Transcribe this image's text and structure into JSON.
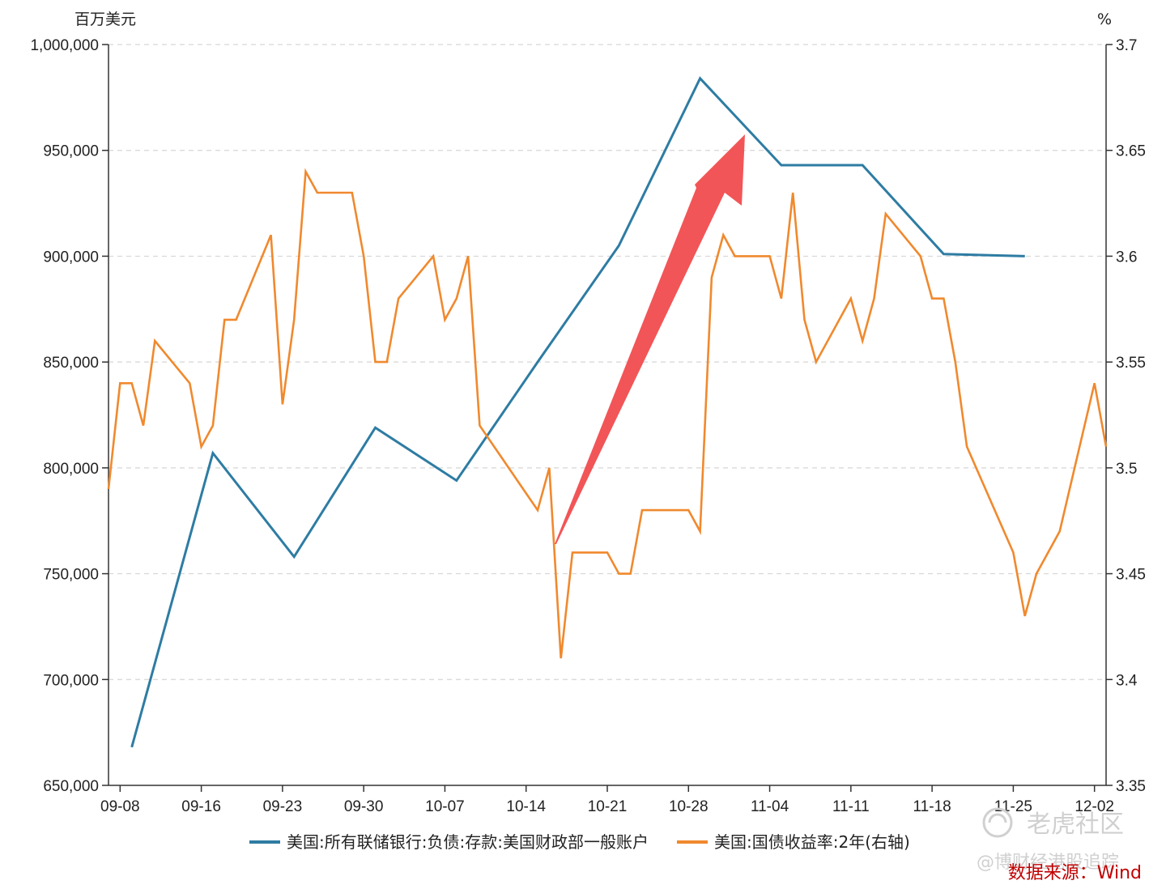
{
  "chart_data": {
    "type": "line",
    "title": "",
    "left_axis": {
      "unit": "百万美元",
      "ylim": [
        650000,
        1000000
      ],
      "ticks": [
        1000000,
        950000,
        900000,
        850000,
        800000,
        750000,
        700000,
        650000
      ]
    },
    "right_axis": {
      "unit": "%",
      "ylim": [
        3.35,
        3.7
      ],
      "ticks": [
        3.7,
        3.65,
        3.6,
        3.55,
        3.5,
        3.45,
        3.4,
        3.35
      ]
    },
    "x_ticks": [
      "09-08",
      "09-16",
      "09-23",
      "09-30",
      "10-07",
      "10-14",
      "10-21",
      "10-28",
      "11-04",
      "11-11",
      "11-18",
      "11-25",
      "12-02"
    ],
    "x_range": [
      "2022-09-07",
      "2022-12-02"
    ],
    "grid": true,
    "legend_position": "bottom",
    "series": [
      {
        "name": "美国:所有联储银行:负债:存款:美国财政部一般账户",
        "axis": "left",
        "color": "#2e7ca3",
        "points": [
          [
            "2022-09-09",
            668000
          ],
          [
            "2022-09-16",
            807000
          ],
          [
            "2022-09-23",
            758000
          ],
          [
            "2022-09-30",
            819000
          ],
          [
            "2022-10-07",
            794000
          ],
          [
            "2022-10-14",
            850000
          ],
          [
            "2022-10-21",
            905000
          ],
          [
            "2022-10-28",
            984000
          ],
          [
            "2022-11-04",
            943000
          ],
          [
            "2022-11-11",
            943000
          ],
          [
            "2022-11-18",
            901000
          ],
          [
            "2022-11-25",
            900000
          ]
        ]
      },
      {
        "name": "美国:国债收益率:2年(右轴)",
        "axis": "right",
        "color": "#f0892e",
        "points": [
          [
            "2022-09-07",
            3.49
          ],
          [
            "2022-09-08",
            3.54
          ],
          [
            "2022-09-09",
            3.54
          ],
          [
            "2022-09-10",
            3.52
          ],
          [
            "2022-09-11",
            3.56
          ],
          [
            "2022-09-14",
            3.54
          ],
          [
            "2022-09-15",
            3.51
          ],
          [
            "2022-09-16",
            3.52
          ],
          [
            "2022-09-17",
            3.57
          ],
          [
            "2022-09-18",
            3.57
          ],
          [
            "2022-09-21",
            3.61
          ],
          [
            "2022-09-22",
            3.53
          ],
          [
            "2022-09-23",
            3.57
          ],
          [
            "2022-09-24",
            3.64
          ],
          [
            "2022-09-25",
            3.63
          ],
          [
            "2022-09-28",
            3.63
          ],
          [
            "2022-09-29",
            3.6
          ],
          [
            "2022-09-30",
            3.55
          ],
          [
            "2022-10-01",
            3.55
          ],
          [
            "2022-10-02",
            3.58
          ],
          [
            "2022-10-05",
            3.6
          ],
          [
            "2022-10-06",
            3.57
          ],
          [
            "2022-10-07",
            3.58
          ],
          [
            "2022-10-08",
            3.6
          ],
          [
            "2022-10-09",
            3.52
          ],
          [
            "2022-10-14",
            3.48
          ],
          [
            "2022-10-15",
            3.5
          ],
          [
            "2022-10-16",
            3.41
          ],
          [
            "2022-10-17",
            3.46
          ],
          [
            "2022-10-20",
            3.46
          ],
          [
            "2022-10-21",
            3.45
          ],
          [
            "2022-10-22",
            3.45
          ],
          [
            "2022-10-23",
            3.48
          ],
          [
            "2022-10-27",
            3.48
          ],
          [
            "2022-10-28",
            3.47
          ],
          [
            "2022-10-29",
            3.59
          ],
          [
            "2022-10-30",
            3.61
          ],
          [
            "2022-10-31",
            3.6
          ],
          [
            "2022-11-03",
            3.6
          ],
          [
            "2022-11-04",
            3.58
          ],
          [
            "2022-11-05",
            3.63
          ],
          [
            "2022-11-06",
            3.57
          ],
          [
            "2022-11-07",
            3.55
          ],
          [
            "2022-11-10",
            3.58
          ],
          [
            "2022-11-11",
            3.56
          ],
          [
            "2022-11-12",
            3.58
          ],
          [
            "2022-11-13",
            3.62
          ],
          [
            "2022-11-16",
            3.6
          ],
          [
            "2022-11-17",
            3.58
          ],
          [
            "2022-11-18",
            3.58
          ],
          [
            "2022-11-19",
            3.55
          ],
          [
            "2022-11-20",
            3.51
          ],
          [
            "2022-11-24",
            3.46
          ],
          [
            "2022-11-25",
            3.43
          ],
          [
            "2022-11-26",
            3.45
          ],
          [
            "2022-11-28",
            3.47
          ],
          [
            "2022-12-01",
            3.54
          ],
          [
            "2022-12-02",
            3.51
          ]
        ]
      }
    ],
    "annotations": [
      "arrow pointing up-right"
    ],
    "source": "数据来源：Wind"
  },
  "watermark": {
    "main": "老虎社区",
    "sub": "@博财经港股追踪"
  },
  "colors": {
    "series1": "#2e7ca3",
    "series2": "#f0892e",
    "arrow": "#f25557",
    "grid": "#d6d6d6",
    "source": "#c00000"
  }
}
